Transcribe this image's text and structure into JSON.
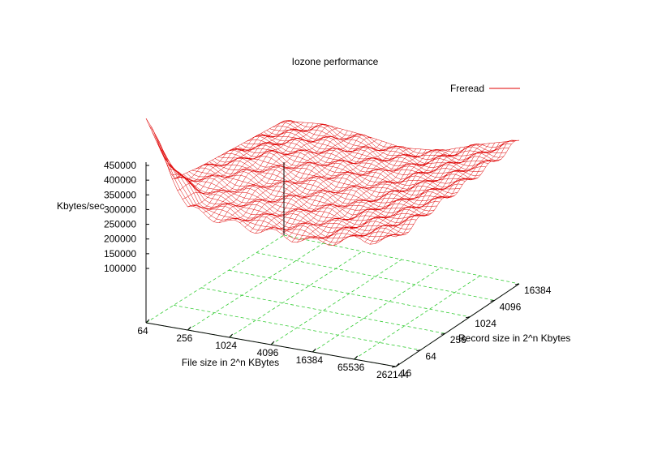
{
  "chart_data": {
    "type": "surface3d",
    "title": "Iozone performance",
    "xlabel": "File size in 2^n KBytes",
    "ylabel": "Record size in 2^n Kbytes",
    "zlabel": "Kbytes/sec",
    "x_ticks": [
      "64",
      "256",
      "1024",
      "4096",
      "16384",
      "65536",
      "262144"
    ],
    "y_ticks": [
      "16",
      "64",
      "256",
      "1024",
      "4096",
      "16384"
    ],
    "z_ticks": [
      "100000",
      "150000",
      "200000",
      "250000",
      "300000",
      "350000",
      "400000",
      "450000"
    ],
    "zlim": [
      0,
      450000
    ],
    "grid": true,
    "legend_position": "top-right",
    "series": [
      {
        "name": "Freread",
        "color": "#e00000",
        "x_file_kb": [
          64,
          256,
          1024,
          4096,
          16384,
          65536,
          262144
        ],
        "y_record_kb": [
          16,
          64,
          256,
          1024,
          4096,
          16384
        ],
        "z_kbytes_per_sec": [
          [
            420000,
            250000,
            235000,
            230000,
            225000,
            245000,
            260000
          ],
          [
            260000,
            245000,
            240000,
            235000,
            230000,
            250000,
            270000
          ],
          [
            250000,
            255000,
            245000,
            240000,
            235000,
            255000,
            275000
          ],
          [
            245000,
            260000,
            250000,
            245000,
            240000,
            260000,
            280000
          ],
          [
            240000,
            250000,
            245000,
            240000,
            245000,
            265000,
            285000
          ],
          [
            235000,
            245000,
            240000,
            230000,
            240000,
            270000,
            295000
          ]
        ]
      }
    ],
    "colors": {
      "surface": "#e00000",
      "base_grid": "#33cc33",
      "axes": "#000000"
    }
  }
}
